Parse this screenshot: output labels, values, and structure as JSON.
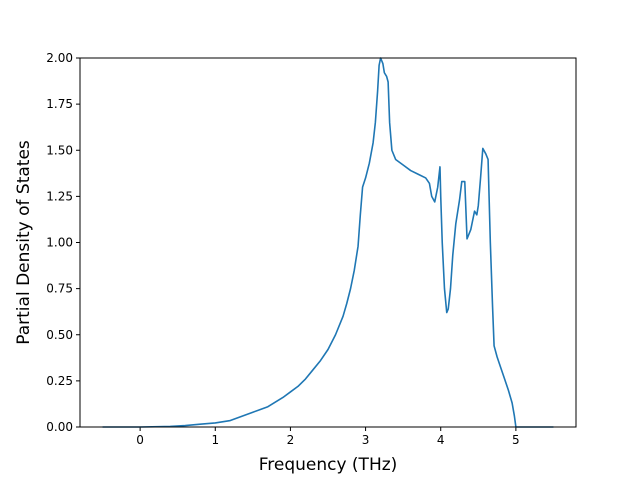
{
  "chart_data": {
    "type": "line",
    "title": "",
    "xlabel": "Frequency (THz)",
    "ylabel": "Partial Density of States",
    "xlim": [
      -0.8,
      5.8
    ],
    "ylim": [
      0,
      2.0
    ],
    "grid": false,
    "legend": "none",
    "x_ticks": [
      {
        "value": 0,
        "label": "0"
      },
      {
        "value": 1,
        "label": "1"
      },
      {
        "value": 2,
        "label": "2"
      },
      {
        "value": 3,
        "label": "3"
      },
      {
        "value": 4,
        "label": "4"
      },
      {
        "value": 5,
        "label": "5"
      }
    ],
    "y_ticks": [
      {
        "value": 0,
        "label": "0.00"
      },
      {
        "value": 0.25,
        "label": "0.25"
      },
      {
        "value": 0.5,
        "label": "0.50"
      },
      {
        "value": 0.75,
        "label": "0.75"
      },
      {
        "value": 1.0,
        "label": "1.00"
      },
      {
        "value": 1.25,
        "label": "1.25"
      },
      {
        "value": 1.5,
        "label": "1.50"
      },
      {
        "value": 1.75,
        "label": "1.75"
      },
      {
        "value": 2.0,
        "label": "2.00"
      }
    ],
    "series": [
      {
        "color": "#1f77b4",
        "points": [
          [
            -0.5,
            0.0
          ],
          [
            0.0,
            0.0
          ],
          [
            0.4,
            0.003
          ],
          [
            0.6,
            0.008
          ],
          [
            0.8,
            0.015
          ],
          [
            1.0,
            0.022
          ],
          [
            1.2,
            0.035
          ],
          [
            1.3,
            0.05
          ],
          [
            1.4,
            0.065
          ],
          [
            1.5,
            0.08
          ],
          [
            1.6,
            0.095
          ],
          [
            1.7,
            0.11
          ],
          [
            1.8,
            0.135
          ],
          [
            1.9,
            0.16
          ],
          [
            2.0,
            0.19
          ],
          [
            2.1,
            0.22
          ],
          [
            2.2,
            0.26
          ],
          [
            2.3,
            0.31
          ],
          [
            2.4,
            0.36
          ],
          [
            2.5,
            0.42
          ],
          [
            2.6,
            0.5
          ],
          [
            2.7,
            0.6
          ],
          [
            2.75,
            0.67
          ],
          [
            2.8,
            0.75
          ],
          [
            2.85,
            0.85
          ],
          [
            2.9,
            0.98
          ],
          [
            2.93,
            1.15
          ],
          [
            2.96,
            1.3
          ],
          [
            3.0,
            1.35
          ],
          [
            3.05,
            1.43
          ],
          [
            3.1,
            1.54
          ],
          [
            3.13,
            1.65
          ],
          [
            3.16,
            1.82
          ],
          [
            3.18,
            1.96
          ],
          [
            3.2,
            2.0
          ],
          [
            3.23,
            1.97
          ],
          [
            3.25,
            1.92
          ],
          [
            3.28,
            1.9
          ],
          [
            3.3,
            1.87
          ],
          [
            3.32,
            1.65
          ],
          [
            3.35,
            1.5
          ],
          [
            3.4,
            1.45
          ],
          [
            3.5,
            1.42
          ],
          [
            3.6,
            1.39
          ],
          [
            3.7,
            1.37
          ],
          [
            3.8,
            1.35
          ],
          [
            3.85,
            1.32
          ],
          [
            3.88,
            1.25
          ],
          [
            3.92,
            1.22
          ],
          [
            3.96,
            1.3
          ],
          [
            3.99,
            1.41
          ],
          [
            4.0,
            1.25
          ],
          [
            4.02,
            1.0
          ],
          [
            4.05,
            0.75
          ],
          [
            4.08,
            0.62
          ],
          [
            4.1,
            0.64
          ],
          [
            4.13,
            0.75
          ],
          [
            4.16,
            0.93
          ],
          [
            4.2,
            1.1
          ],
          [
            4.25,
            1.23
          ],
          [
            4.28,
            1.33
          ],
          [
            4.32,
            1.33
          ],
          [
            4.35,
            1.02
          ],
          [
            4.4,
            1.07
          ],
          [
            4.45,
            1.17
          ],
          [
            4.48,
            1.15
          ],
          [
            4.5,
            1.2
          ],
          [
            4.53,
            1.35
          ],
          [
            4.56,
            1.51
          ],
          [
            4.6,
            1.48
          ],
          [
            4.63,
            1.45
          ],
          [
            4.66,
            1.0
          ],
          [
            4.69,
            0.65
          ],
          [
            4.71,
            0.44
          ],
          [
            4.75,
            0.38
          ],
          [
            4.8,
            0.32
          ],
          [
            4.85,
            0.26
          ],
          [
            4.9,
            0.2
          ],
          [
            4.95,
            0.13
          ],
          [
            4.98,
            0.06
          ],
          [
            5.0,
            0.0
          ],
          [
            5.5,
            0.0
          ]
        ]
      }
    ]
  }
}
